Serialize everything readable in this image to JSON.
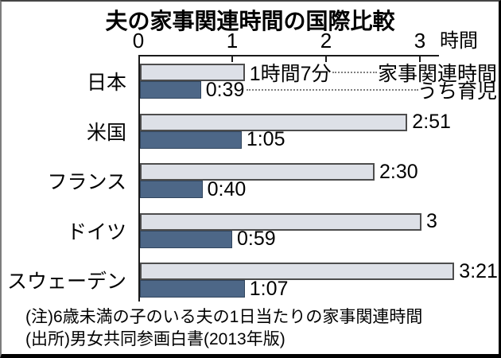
{
  "title": "夫の家事関連時間の国際比較",
  "axis": {
    "ticks": [
      "0",
      "1",
      "2",
      "3"
    ],
    "unit": "時間"
  },
  "legend": {
    "housework": "家事関連時間",
    "childcare": "うち育児"
  },
  "notes": [
    "(注)6歳未満の子のいる夫の1日当たりの家事関連時間",
    "(出所)男女共同参画白書(2013年版)"
  ],
  "colors": {
    "housework_fill": "#dde0e7",
    "housework_border": "#4d4d4d",
    "childcare_fill": "#4d6787",
    "childcare_border": "#32465e",
    "axis_line": "#1a1a1a",
    "leader_dots": "#808080"
  },
  "chart_data": {
    "type": "bar",
    "orientation": "horizontal",
    "title": "夫の家事関連時間の国際比較",
    "categories": [
      "日本",
      "米国",
      "フランス",
      "ドイツ",
      "スウェーデン"
    ],
    "series": [
      {
        "name": "家事関連時間",
        "values_minutes": [
          67,
          171,
          150,
          180,
          201
        ],
        "labels": [
          "1時間7分",
          "2:51",
          "2:30",
          "3",
          "3:21"
        ]
      },
      {
        "name": "うち育児",
        "values_minutes": [
          39,
          65,
          40,
          59,
          67
        ],
        "labels": [
          "0:39",
          "1:05",
          "0:40",
          "0:59",
          "1:07"
        ]
      }
    ],
    "x_ticks": [
      0,
      1,
      2,
      3
    ],
    "x_unit": "時間",
    "xlim": [
      0,
      3.35
    ],
    "grid": false,
    "legend_position": "right-of-first-row",
    "note": "(注)6歳未満の子のいる夫の1日当たりの家事関連時間",
    "source": "(出所)男女共同参画白書(2013年版)"
  }
}
